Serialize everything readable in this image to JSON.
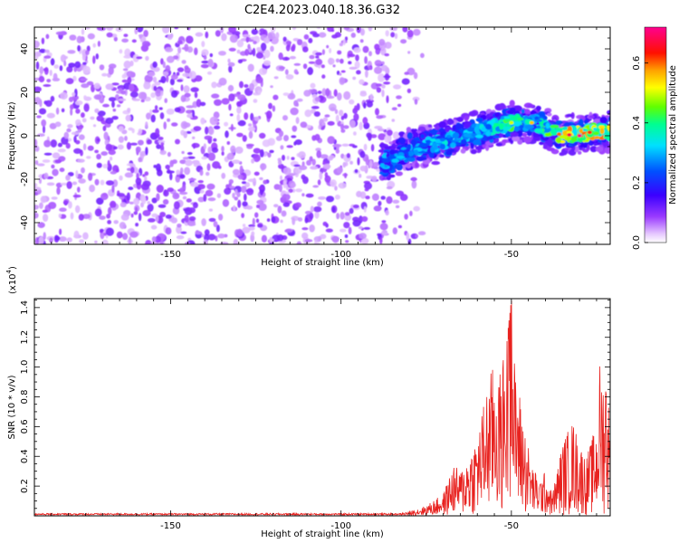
{
  "title": "C2E4.2023.040.18.36.G32",
  "chart_data": [
    {
      "type": "heatmap",
      "xlabel": "Height of straight line (km)",
      "ylabel": "Frequency (Hz)",
      "xlim": [
        -190,
        -21
      ],
      "ylim": [
        -50,
        50
      ],
      "xticks": [
        -150,
        -100,
        -50
      ],
      "yticks": [
        -40,
        -20,
        0,
        20,
        40
      ],
      "colorbar": {
        "label": "Normalized spectral amplitude",
        "range": [
          0,
          0.72
        ],
        "ticks": [
          0.0,
          0.2,
          0.4,
          0.6
        ],
        "colormap": "rainbow (white → violet → blue → cyan → green → yellow → orange → red → magenta)"
      },
      "features": {
        "noise_region_x": [
          -190,
          -80
        ],
        "noise_amplitude": [
          0.03,
          0.12
        ],
        "signal_band": [
          {
            "x": -88,
            "y": -13,
            "amplitude": 0.3
          },
          {
            "x": -80,
            "y": -6,
            "amplitude": 0.3
          },
          {
            "x": -70,
            "y": -3,
            "amplitude": 0.35
          },
          {
            "x": -60,
            "y": 2,
            "amplitude": 0.35
          },
          {
            "x": -50,
            "y": 6,
            "amplitude": 0.45
          },
          {
            "x": -43,
            "y": 6,
            "amplitude": 0.35
          },
          {
            "x": -35,
            "y": 0,
            "amplitude": 0.55
          },
          {
            "x": -25,
            "y": 2,
            "amplitude": 0.6
          }
        ],
        "peak": {
          "x": -30,
          "y": 0,
          "amplitude": 0.72
        }
      }
    },
    {
      "type": "line",
      "xlabel": "Height of straight line (km)",
      "ylabel": "SNR (10 * v/v)",
      "y_multiplier_label": "(x10",
      "y_multiplier_exp": "4",
      "xlim": [
        -190,
        -21
      ],
      "ylim": [
        0,
        1.46
      ],
      "xticks": [
        -150,
        -100,
        -50
      ],
      "yticks": [
        0.2,
        0.4,
        0.6,
        0.8,
        1.0,
        1.2,
        1.4
      ],
      "color": "#e8221f",
      "series": [
        {
          "x": [
            -190,
            -150,
            -100,
            -85,
            -80,
            -75,
            -70,
            -67,
            -65,
            -62,
            -60,
            -57,
            -55,
            -53,
            -52,
            -51,
            -50,
            -49,
            -48,
            -46,
            -44,
            -42,
            -40,
            -38,
            -35,
            -32,
            -30,
            -28,
            -26,
            -25,
            -24,
            -23,
            -22,
            -21
          ],
          "y": [
            0.01,
            0.01,
            0.01,
            0.01,
            0.03,
            0.07,
            0.15,
            0.35,
            0.3,
            0.45,
            0.55,
            0.9,
            1.05,
            0.95,
            1.2,
            1.25,
            1.46,
            1.0,
            0.9,
            0.6,
            0.35,
            0.25,
            0.3,
            0.15,
            0.5,
            0.65,
            0.5,
            0.4,
            0.55,
            0.6,
            1.05,
            0.95,
            1.1,
            0.5
          ]
        }
      ]
    }
  ]
}
